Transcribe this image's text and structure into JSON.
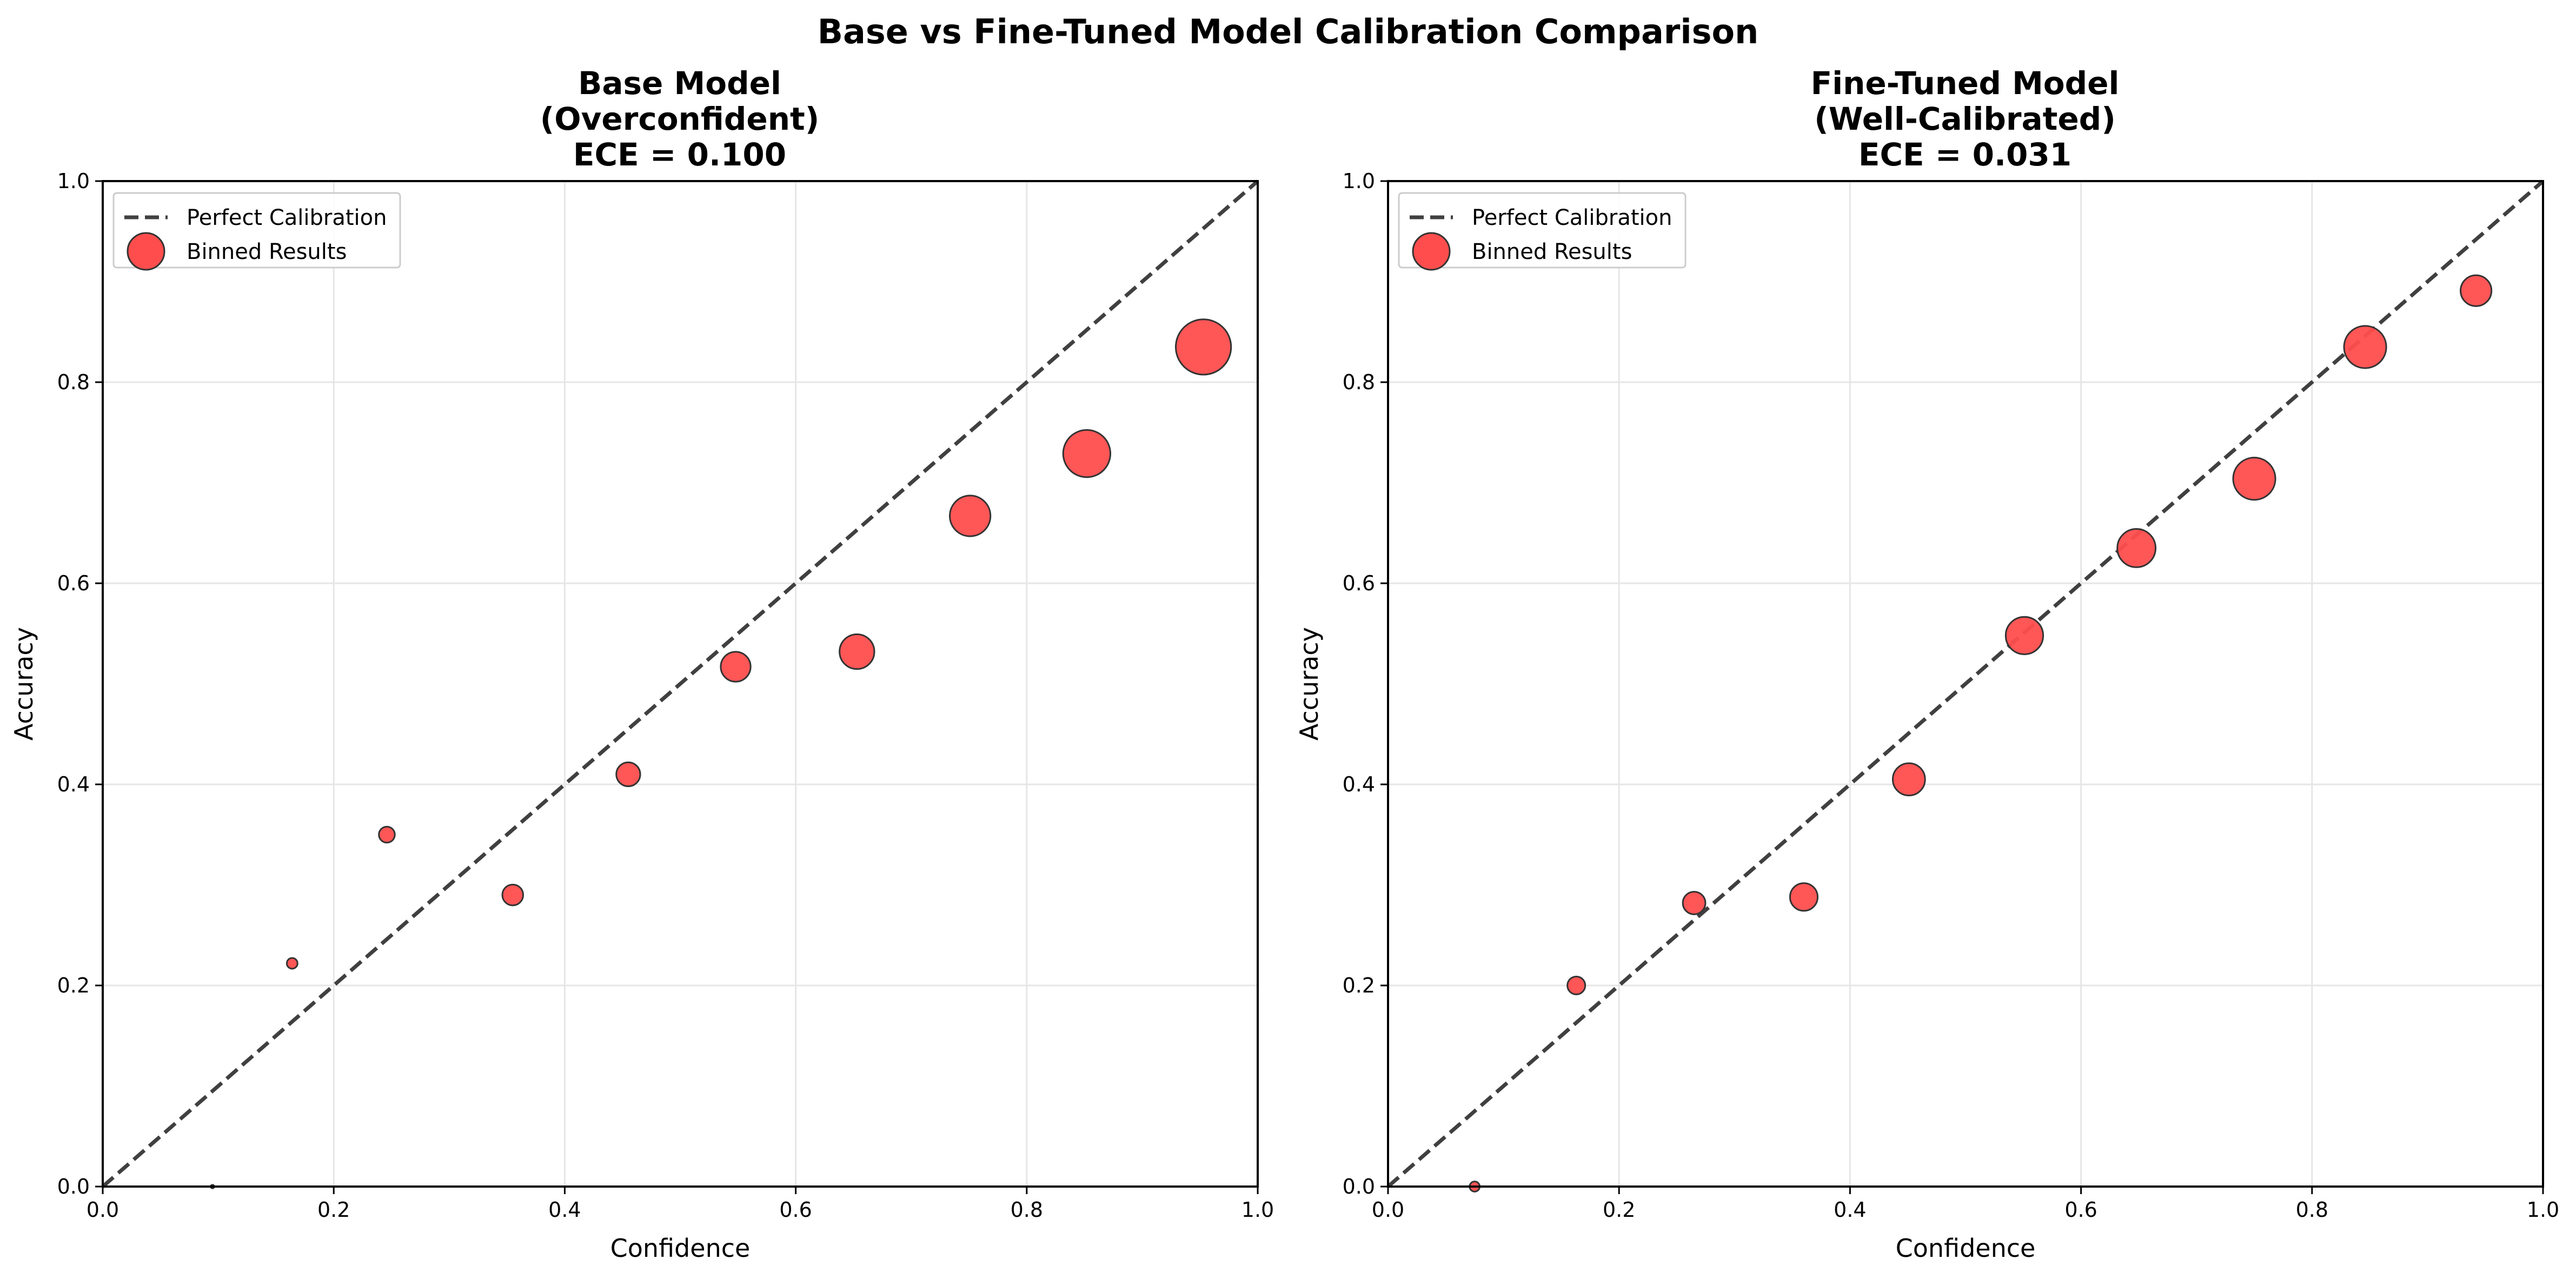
{
  "figure": {
    "suptitle": "Base vs Fine-Tuned Model Calibration Comparison"
  },
  "chart_data": [
    {
      "type": "scatter",
      "title_lines": [
        "Base Model",
        "(Overconfident)",
        "ECE = 0.100"
      ],
      "xlabel": "Confidence",
      "ylabel": "Accuracy",
      "xlim": [
        0.0,
        1.0
      ],
      "ylim": [
        0.0,
        1.0
      ],
      "xticks": [
        "0.0",
        "0.2",
        "0.4",
        "0.6",
        "0.8",
        "1.0"
      ],
      "yticks": [
        "0.0",
        "0.2",
        "0.4",
        "0.6",
        "0.8",
        "1.0"
      ],
      "grid": true,
      "legend_position": "upper-left",
      "legend": [
        "Perfect Calibration",
        "Binned Results"
      ],
      "reference_line": {
        "name": "Perfect Calibration",
        "x": [
          0.0,
          1.0
        ],
        "y": [
          0.0,
          1.0
        ],
        "color": "#404040",
        "style": "dashed"
      },
      "series": [
        {
          "name": "Binned Results",
          "color": "#ff4d4d",
          "points": [
            {
              "x": 0.095,
              "y": 0.0,
              "count": 1
            },
            {
              "x": 0.164,
              "y": 0.222,
              "count": 9
            },
            {
              "x": 0.246,
              "y": 0.35,
              "count": 20
            },
            {
              "x": 0.355,
              "y": 0.29,
              "count": 34
            },
            {
              "x": 0.455,
              "y": 0.41,
              "count": 45
            },
            {
              "x": 0.548,
              "y": 0.517,
              "count": 70
            },
            {
              "x": 0.653,
              "y": 0.532,
              "count": 95
            },
            {
              "x": 0.751,
              "y": 0.667,
              "count": 130
            },
            {
              "x": 0.852,
              "y": 0.729,
              "count": 175
            },
            {
              "x": 0.953,
              "y": 0.835,
              "count": 240
            }
          ]
        }
      ]
    },
    {
      "type": "scatter",
      "title_lines": [
        "Fine-Tuned Model",
        "(Well-Calibrated)",
        "ECE = 0.031"
      ],
      "xlabel": "Confidence",
      "ylabel": "Accuracy",
      "xlim": [
        0.0,
        1.0
      ],
      "ylim": [
        0.0,
        1.0
      ],
      "xticks": [
        "0.0",
        "0.2",
        "0.4",
        "0.6",
        "0.8",
        "1.0"
      ],
      "yticks": [
        "0.0",
        "0.2",
        "0.4",
        "0.6",
        "0.8",
        "1.0"
      ],
      "grid": true,
      "legend_position": "upper-left",
      "legend": [
        "Perfect Calibration",
        "Binned Results"
      ],
      "reference_line": {
        "name": "Perfect Calibration",
        "x": [
          0.0,
          1.0
        ],
        "y": [
          0.0,
          1.0
        ],
        "color": "#404040",
        "style": "dashed"
      },
      "series": [
        {
          "name": "Binned Results",
          "color": "#ff4d4d",
          "points": [
            {
              "x": 0.075,
              "y": 0.0,
              "count": 8
            },
            {
              "x": 0.163,
              "y": 0.2,
              "count": 25
            },
            {
              "x": 0.265,
              "y": 0.282,
              "count": 40
            },
            {
              "x": 0.36,
              "y": 0.288,
              "count": 60
            },
            {
              "x": 0.451,
              "y": 0.405,
              "count": 82
            },
            {
              "x": 0.551,
              "y": 0.548,
              "count": 110
            },
            {
              "x": 0.648,
              "y": 0.635,
              "count": 115
            },
            {
              "x": 0.75,
              "y": 0.704,
              "count": 140
            },
            {
              "x": 0.846,
              "y": 0.835,
              "count": 140
            },
            {
              "x": 0.942,
              "y": 0.891,
              "count": 75
            }
          ]
        }
      ]
    }
  ]
}
